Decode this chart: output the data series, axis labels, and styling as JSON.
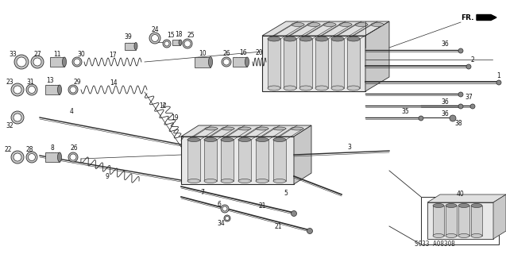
{
  "bg_color": "#ffffff",
  "figure_size": [
    6.37,
    3.2
  ],
  "dpi": 100,
  "watermark": "S033 A0830B",
  "line_color": "#2a2a2a",
  "text_color": "#111111",
  "label_fontsize": 5.5,
  "gray_fill": "#c8c8c8",
  "dark_fill": "#888888",
  "light_fill": "#e8e8e8"
}
